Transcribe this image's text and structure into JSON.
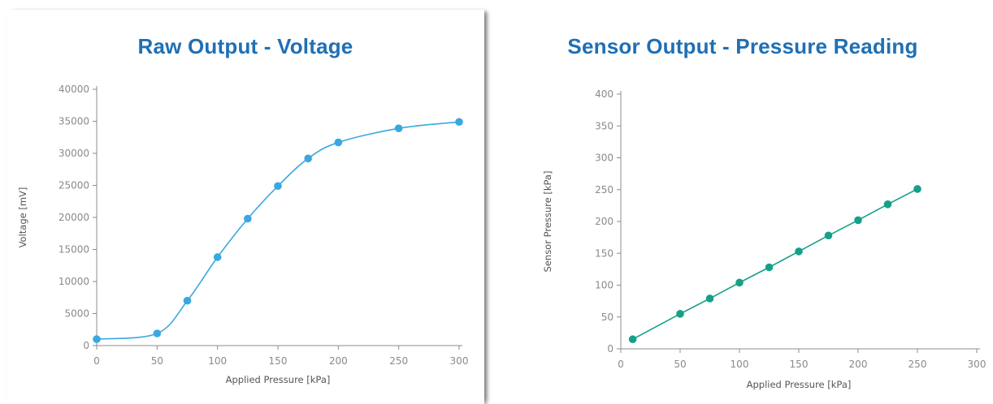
{
  "charts": [
    {
      "title": "Raw Output - Voltage",
      "chart_data": {
        "type": "line",
        "title": "Raw Output - Voltage",
        "xlabel": "Applied Pressure [kPa]",
        "ylabel": "Voltage [mV]",
        "xlim": [
          0,
          300
        ],
        "ylim": [
          0,
          40000
        ],
        "xticks": [
          0,
          50,
          100,
          150,
          200,
          250,
          300
        ],
        "yticks": [
          0,
          5000,
          10000,
          15000,
          20000,
          25000,
          30000,
          35000,
          40000
        ],
        "grid": false,
        "smooth": true,
        "series": [
          {
            "color": "#3aa8e0",
            "x": [
              0,
              50,
              75,
              100,
              125,
              150,
              175,
              200,
              250,
              300
            ],
            "y": [
              1000,
              1900,
              7000,
              13800,
              19800,
              24900,
              29200,
              31700,
              33900,
              34900
            ]
          }
        ]
      }
    },
    {
      "title": "Sensor Output - Pressure Reading",
      "chart_data": {
        "type": "line",
        "title": "Sensor Output - Pressure Reading",
        "xlabel": "Applied Pressure [kPa]",
        "ylabel": "Sensor Pressure [kPa]",
        "xlim": [
          0,
          300
        ],
        "ylim": [
          0,
          400
        ],
        "xticks": [
          0,
          50,
          100,
          150,
          200,
          250,
          300
        ],
        "yticks": [
          0,
          50,
          100,
          150,
          200,
          250,
          300,
          350,
          400
        ],
        "grid": false,
        "smooth": false,
        "series": [
          {
            "color": "#14a08a",
            "x": [
              10,
              50,
              75,
              100,
              125,
              150,
              175,
              200,
              225,
              250
            ],
            "y": [
              15,
              55,
              79,
              104,
              128,
              153,
              178,
              202,
              227,
              251
            ]
          }
        ]
      }
    }
  ]
}
